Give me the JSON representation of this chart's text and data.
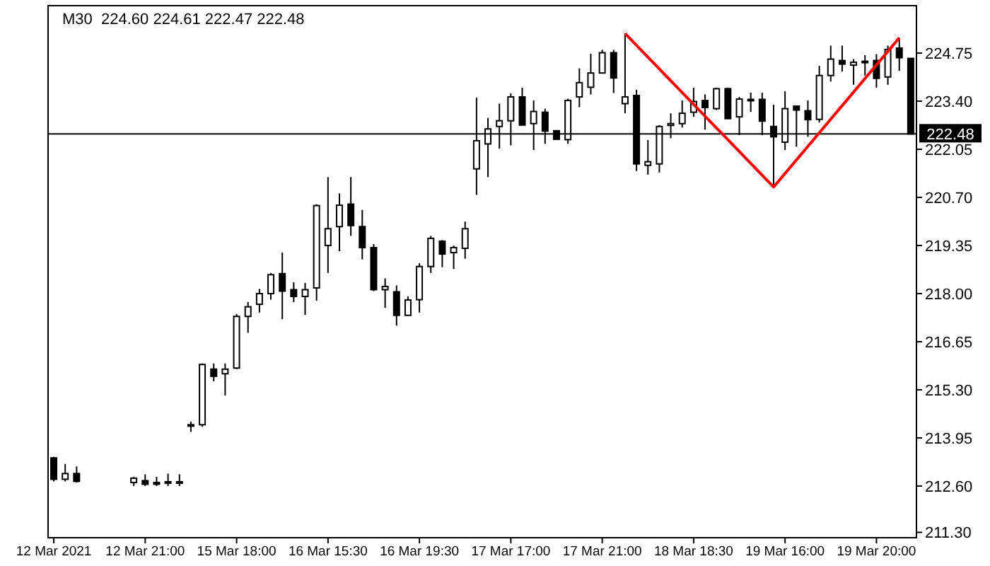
{
  "chart_data": {
    "type": "candlestick",
    "title": "M30  224.60 224.61 222.47 222.48",
    "categories": [
      "12 Mar 2021",
      null,
      null,
      null,
      null,
      null,
      null,
      null,
      "12 Mar 21:00",
      null,
      null,
      null,
      null,
      null,
      null,
      null,
      "15 Mar 18:00",
      null,
      null,
      null,
      null,
      null,
      null,
      null,
      "16 Mar 15:30",
      null,
      null,
      null,
      null,
      null,
      null,
      null,
      "16 Mar 19:30",
      null,
      null,
      null,
      null,
      null,
      null,
      null,
      "17 Mar 17:00",
      null,
      null,
      null,
      null,
      null,
      null,
      null,
      "17 Mar 21:00",
      null,
      null,
      null,
      null,
      null,
      null,
      null,
      "18 Mar 18:30",
      null,
      null,
      null,
      null,
      null,
      null,
      null,
      "19 Mar 16:00",
      null,
      null,
      null,
      null,
      null,
      null,
      null,
      "19 Mar 20:00",
      null,
      null,
      null
    ],
    "color": "#000000",
    "ohlc": [
      [
        213.39,
        213.42,
        212.73,
        212.79
      ],
      [
        212.79,
        213.22,
        212.73,
        212.95
      ],
      [
        212.95,
        213.15,
        212.7,
        212.73
      ],
      null,
      null,
      null,
      null,
      [
        212.7,
        212.86,
        212.6,
        212.82
      ],
      [
        212.75,
        212.93,
        212.6,
        212.65
      ],
      [
        212.7,
        212.86,
        212.6,
        212.65
      ],
      [
        212.7,
        212.95,
        212.6,
        212.72
      ],
      [
        212.72,
        212.93,
        212.6,
        212.7
      ],
      [
        214.3,
        214.41,
        214.12,
        214.32
      ],
      [
        214.32,
        216.04,
        214.26,
        216.01
      ],
      [
        215.88,
        216.04,
        215.54,
        215.68
      ],
      [
        215.75,
        216.04,
        215.14,
        215.88
      ],
      [
        215.91,
        217.43,
        215.88,
        217.36
      ],
      [
        217.36,
        217.76,
        216.9,
        217.63
      ],
      [
        217.7,
        218.13,
        217.47,
        218.0
      ],
      [
        218.0,
        218.58,
        217.83,
        218.53
      ],
      [
        218.56,
        219.15,
        217.28,
        218.07
      ],
      [
        218.11,
        218.32,
        217.76,
        217.92
      ],
      [
        217.92,
        218.3,
        217.4,
        218.11
      ],
      [
        218.16,
        220.51,
        217.8,
        220.47
      ],
      [
        219.35,
        221.27,
        218.58,
        219.82
      ],
      [
        219.88,
        220.81,
        219.19,
        220.48
      ],
      [
        220.51,
        221.27,
        219.62,
        219.91
      ],
      [
        219.88,
        220.35,
        218.96,
        219.29
      ],
      [
        219.29,
        219.39,
        218.07,
        218.11
      ],
      [
        218.11,
        218.43,
        217.6,
        218.2
      ],
      [
        218.05,
        218.23,
        217.1,
        217.39
      ],
      [
        217.39,
        217.92,
        217.38,
        217.82
      ],
      [
        217.83,
        218.85,
        217.47,
        218.76
      ],
      [
        218.76,
        219.62,
        218.58,
        219.55
      ],
      [
        219.47,
        219.5,
        218.74,
        219.11
      ],
      [
        219.15,
        219.35,
        218.69,
        219.29
      ],
      [
        219.27,
        220.02,
        218.98,
        219.82
      ],
      [
        221.5,
        223.5,
        220.77,
        222.29
      ],
      [
        222.2,
        222.93,
        221.27,
        222.62
      ],
      [
        222.69,
        223.33,
        222.07,
        222.85
      ],
      [
        222.85,
        223.62,
        222.16,
        223.52
      ],
      [
        223.52,
        223.78,
        222.72,
        222.73
      ],
      [
        222.77,
        223.42,
        222.03,
        223.11
      ],
      [
        223.09,
        223.19,
        222.2,
        222.56
      ],
      [
        222.57,
        222.58,
        222.32,
        222.33
      ],
      [
        222.32,
        223.47,
        222.2,
        223.42
      ],
      [
        223.52,
        224.32,
        223.23,
        223.92
      ],
      [
        223.79,
        224.73,
        223.59,
        224.19
      ],
      [
        224.19,
        224.84,
        224.18,
        224.76
      ],
      [
        224.76,
        224.84,
        223.63,
        224.05
      ],
      [
        223.33,
        225.3,
        223.06,
        223.52
      ],
      [
        223.56,
        223.72,
        221.44,
        221.64
      ],
      [
        221.6,
        222.31,
        221.34,
        221.7
      ],
      [
        221.64,
        222.73,
        221.4,
        222.69
      ],
      [
        222.72,
        223.06,
        222.36,
        222.77
      ],
      [
        222.77,
        223.42,
        222.66,
        223.06
      ],
      [
        223.09,
        223.78,
        222.96,
        223.39
      ],
      [
        223.42,
        223.59,
        222.6,
        223.22
      ],
      [
        223.19,
        223.78,
        223.15,
        223.75
      ],
      [
        223.75,
        223.78,
        222.9,
        222.91
      ],
      [
        222.96,
        223.52,
        222.45,
        223.46
      ],
      [
        223.45,
        223.64,
        223.1,
        223.45
      ],
      [
        223.45,
        223.64,
        222.45,
        222.84
      ],
      [
        222.69,
        223.3,
        220.99,
        222.4
      ],
      [
        222.25,
        223.68,
        222.03,
        223.19
      ],
      [
        223.26,
        223.27,
        222.12,
        223.15
      ],
      [
        223.13,
        223.42,
        222.4,
        222.88
      ],
      [
        222.89,
        224.39,
        222.8,
        224.12
      ],
      [
        224.12,
        224.96,
        223.95,
        224.58
      ],
      [
        224.54,
        224.96,
        224.23,
        224.44
      ],
      [
        224.41,
        224.58,
        223.86,
        224.49
      ],
      [
        224.52,
        224.69,
        224.12,
        224.52
      ],
      [
        224.54,
        224.72,
        223.78,
        224.04
      ],
      [
        224.08,
        224.96,
        223.86,
        224.85
      ],
      [
        224.89,
        225.18,
        224.25,
        224.62
      ],
      [
        224.6,
        224.61,
        222.47,
        222.48
      ]
    ],
    "series": [
      {
        "type": "line",
        "color": "#ff0000",
        "values": [
          null,
          null,
          null,
          null,
          null,
          null,
          null,
          null,
          null,
          null,
          null,
          null,
          null,
          null,
          null,
          null,
          null,
          null,
          null,
          null,
          null,
          null,
          null,
          null,
          null,
          null,
          null,
          null,
          null,
          null,
          null,
          null,
          null,
          null,
          null,
          null,
          null,
          null,
          null,
          null,
          null,
          null,
          null,
          null,
          null,
          null,
          null,
          null,
          null,
          null,
          225.3,
          null,
          null,
          null,
          null,
          null,
          null,
          null,
          null,
          null,
          null,
          null,
          null,
          220.99,
          null,
          null,
          null,
          null,
          null,
          null,
          null,
          null,
          null,
          null,
          225.18,
          null
        ]
      }
    ],
    "ref_lines": [
      {
        "axis": "y",
        "value": 222.48,
        "label": "222.48",
        "color": "#000000"
      }
    ],
    "ylim": [
      211.15,
      226.08
    ],
    "yticks": [
      {
        "value": 211.3,
        "label": "211.30"
      },
      {
        "value": 212.6,
        "label": "212.60"
      },
      {
        "value": 213.95,
        "label": "213.95"
      },
      {
        "value": 215.3,
        "label": "215.30"
      },
      {
        "value": 216.65,
        "label": "216.65"
      },
      {
        "value": 218.0,
        "label": "218.00"
      },
      {
        "value": 219.35,
        "label": "219.35"
      },
      {
        "value": 220.7,
        "label": "220.70"
      },
      {
        "value": 222.05,
        "label": "222.05"
      },
      {
        "value": 223.4,
        "label": "223.40"
      },
      {
        "value": 224.75,
        "label": "224.75"
      }
    ],
    "grid": false,
    "legend": false
  }
}
